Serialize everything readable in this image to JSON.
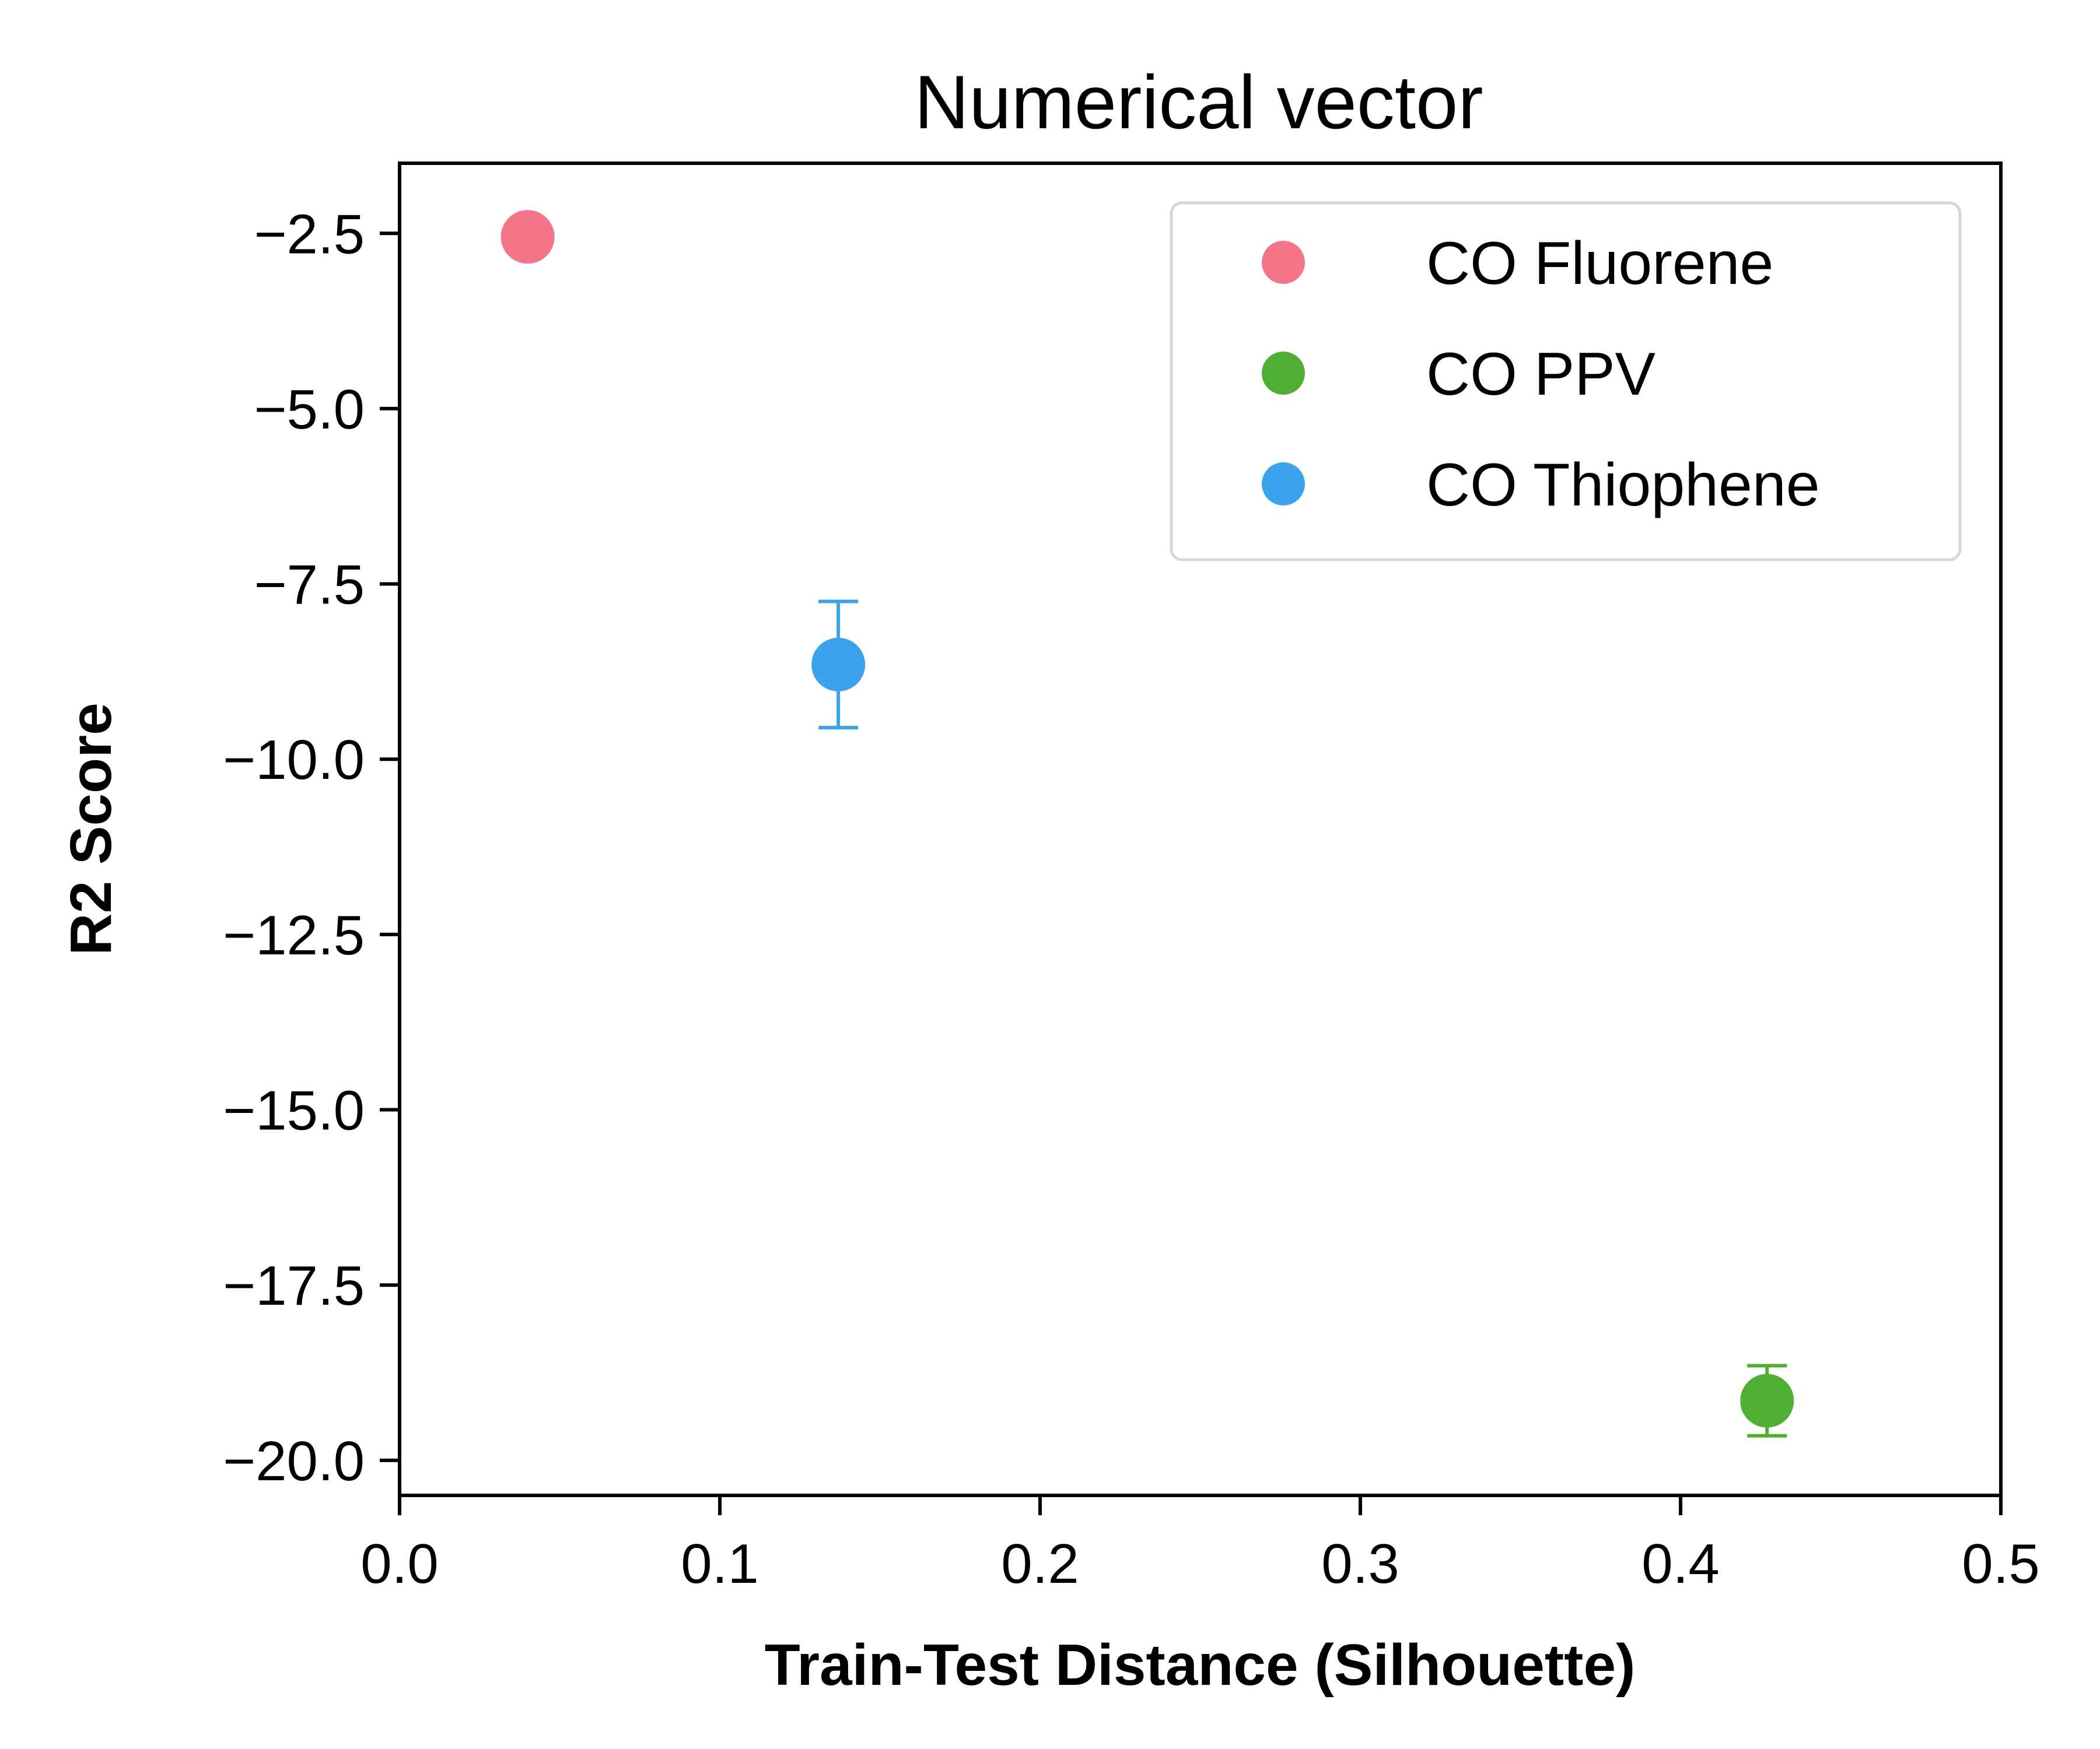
{
  "chart_data": {
    "type": "scatter",
    "title": "Numerical vector",
    "xlabel": "Train-Test Distance (Silhouette)",
    "ylabel": "R2 Score",
    "xlim": [
      0.0,
      0.5
    ],
    "ylim": [
      -20.5,
      -1.5
    ],
    "x_ticks": [
      0.0,
      0.1,
      0.2,
      0.3,
      0.4,
      0.5
    ],
    "x_tick_labels": [
      "0.0",
      "0.1",
      "0.2",
      "0.3",
      "0.4",
      "0.5"
    ],
    "y_ticks": [
      -2.5,
      -5.0,
      -7.5,
      -10.0,
      -12.5,
      -15.0,
      -17.5,
      -20.0
    ],
    "y_tick_labels": [
      "−2.5",
      "−5.0",
      "−7.5",
      "−10.0",
      "−12.5",
      "−15.0",
      "−17.5",
      "−20.0"
    ],
    "grid": false,
    "legend_position": "top-right",
    "series": [
      {
        "name": "CO Fluorene",
        "color": "#f4758a",
        "x": 0.04,
        "y": -2.55,
        "yerr": 0.0
      },
      {
        "name": "CO PPV",
        "color": "#4fae33",
        "x": 0.427,
        "y": -19.15,
        "yerr": 0.5
      },
      {
        "name": "CO Thiophene",
        "color": "#3ba3ec",
        "x": 0.137,
        "y": -8.65,
        "yerr": 0.9
      }
    ]
  }
}
